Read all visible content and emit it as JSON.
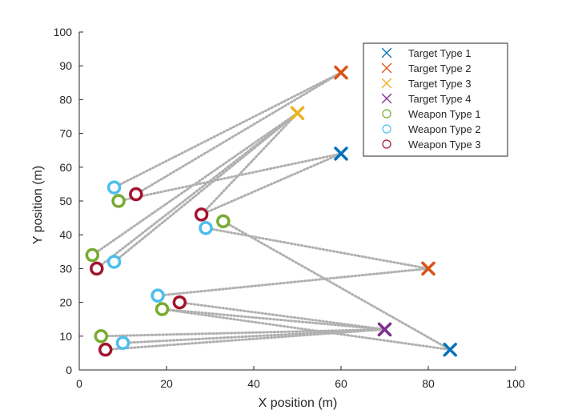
{
  "chart_data": {
    "type": "scatter",
    "title": "",
    "xlabel": "X position (m)",
    "ylabel": "Y position (m)",
    "xlim": [
      0,
      100
    ],
    "ylim": [
      0,
      100
    ],
    "xticks": [
      0,
      20,
      40,
      60,
      80,
      100
    ],
    "yticks": [
      0,
      10,
      20,
      30,
      40,
      50,
      60,
      70,
      80,
      90,
      100
    ],
    "grid": false,
    "legend_position": "top-right",
    "series": [
      {
        "name": "Target Type 1",
        "marker": "x",
        "color": "#0072BD",
        "points": [
          [
            60,
            64
          ],
          [
            85,
            6
          ]
        ]
      },
      {
        "name": "Target Type 2",
        "marker": "x",
        "color": "#D95319",
        "points": [
          [
            60,
            88
          ],
          [
            80,
            30
          ]
        ]
      },
      {
        "name": "Target Type 3",
        "marker": "x",
        "color": "#EDB120",
        "points": [
          [
            50,
            76
          ]
        ]
      },
      {
        "name": "Target Type 4",
        "marker": "x",
        "color": "#7E2F8E",
        "points": [
          [
            70,
            12
          ]
        ]
      },
      {
        "name": "Weapon Type 1",
        "marker": "o",
        "color": "#77AC30",
        "points": [
          [
            9,
            50
          ],
          [
            33,
            44
          ],
          [
            3,
            34
          ],
          [
            19,
            18
          ],
          [
            5,
            10
          ]
        ]
      },
      {
        "name": "Weapon Type 2",
        "marker": "o",
        "color": "#4DBEEE",
        "points": [
          [
            8,
            54
          ],
          [
            29,
            42
          ],
          [
            8,
            32
          ],
          [
            18,
            22
          ],
          [
            10,
            8
          ]
        ]
      },
      {
        "name": "Weapon Type 3",
        "marker": "o",
        "color": "#A2142F",
        "points": [
          [
            13,
            52
          ],
          [
            28,
            46
          ],
          [
            4,
            30
          ],
          [
            23,
            20
          ],
          [
            6,
            6
          ]
        ]
      }
    ],
    "assignments": [
      {
        "from": [
          8,
          54
        ],
        "to": [
          60,
          88
        ]
      },
      {
        "from": [
          13,
          52
        ],
        "to": [
          60,
          88
        ]
      },
      {
        "from": [
          9,
          50
        ],
        "to": [
          60,
          64
        ]
      },
      {
        "from": [
          28,
          46
        ],
        "to": [
          60,
          64
        ]
      },
      {
        "from": [
          28,
          46
        ],
        "to": [
          50,
          76
        ]
      },
      {
        "from": [
          3,
          34
        ],
        "to": [
          50,
          76
        ]
      },
      {
        "from": [
          8,
          32
        ],
        "to": [
          50,
          76
        ]
      },
      {
        "from": [
          29,
          42
        ],
        "to": [
          80,
          30
        ]
      },
      {
        "from": [
          33,
          44
        ],
        "to": [
          85,
          6
        ]
      },
      {
        "from": [
          18,
          22
        ],
        "to": [
          80,
          30
        ]
      },
      {
        "from": [
          23,
          20
        ],
        "to": [
          70,
          12
        ]
      },
      {
        "from": [
          19,
          18
        ],
        "to": [
          70,
          12
        ]
      },
      {
        "from": [
          5,
          10
        ],
        "to": [
          70,
          12
        ]
      },
      {
        "from": [
          10,
          8
        ],
        "to": [
          70,
          12
        ]
      },
      {
        "from": [
          6,
          6
        ],
        "to": [
          70,
          12
        ]
      },
      {
        "from": [
          19,
          18
        ],
        "to": [
          85,
          6
        ]
      },
      {
        "from": [
          4,
          30
        ],
        "to": [
          50,
          76
        ]
      }
    ]
  }
}
